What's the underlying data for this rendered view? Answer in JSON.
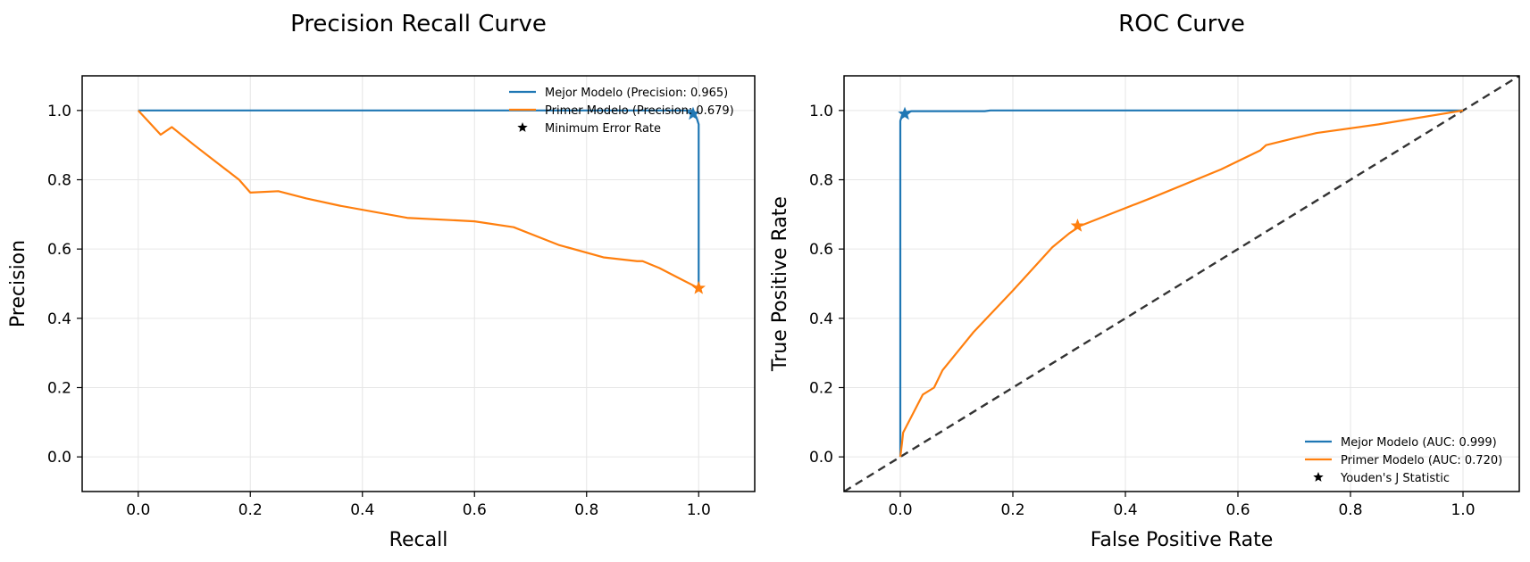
{
  "colors": {
    "mejor": "#1f77b4",
    "primer": "#ff7f0e",
    "diagonal": "#333333",
    "marker": "#000000"
  },
  "chart_data": [
    {
      "type": "line",
      "title": "Precision Recall Curve",
      "xlabel": "Recall",
      "ylabel": "Precision",
      "xlim": [
        -0.1,
        1.1
      ],
      "ylim": [
        -0.1,
        1.1
      ],
      "xticks": [
        0.0,
        0.2,
        0.4,
        0.6,
        0.8,
        1.0
      ],
      "yticks": [
        0.0,
        0.2,
        0.4,
        0.6,
        0.8,
        1.0
      ],
      "tick_labels": [
        "0.0",
        "0.2",
        "0.4",
        "0.6",
        "0.8",
        "1.0"
      ],
      "grid": true,
      "legend_position": "top-right",
      "legend": [
        {
          "label": "Mejor Modelo (Precision: 0.965)",
          "kind": "line",
          "color_key": "mejor"
        },
        {
          "label": "Primer Modelo (Precision: 0.679)",
          "kind": "line",
          "color_key": "primer"
        },
        {
          "label": "Minimum Error Rate",
          "kind": "star",
          "color_key": "marker"
        }
      ],
      "series": [
        {
          "name": "Mejor Modelo",
          "color_key": "mejor",
          "x": [
            0.0,
            0.5,
            0.985,
            0.99,
            0.993,
            0.996,
            0.998,
            1.0,
            1.0,
            1.0,
            1.0
          ],
          "y": [
            1.0,
            1.0,
            1.0,
            1.0,
            0.99,
            0.98,
            0.97,
            0.96,
            0.86,
            0.86,
            0.49
          ],
          "marker": {
            "x": 0.99,
            "y": 0.99
          }
        },
        {
          "name": "Primer Modelo",
          "color_key": "primer",
          "x": [
            0.0,
            0.02,
            0.04,
            0.06,
            0.1,
            0.14,
            0.18,
            0.2,
            0.25,
            0.3,
            0.36,
            0.48,
            0.6,
            0.67,
            0.75,
            0.83,
            0.89,
            0.9,
            0.93,
            0.96,
            1.0
          ],
          "y": [
            1.0,
            0.965,
            0.93,
            0.952,
            0.9,
            0.85,
            0.8,
            0.763,
            0.767,
            0.746,
            0.725,
            0.69,
            0.68,
            0.663,
            0.612,
            0.576,
            0.565,
            0.565,
            0.545,
            0.52,
            0.487
          ],
          "marker": {
            "x": 1.0,
            "y": 0.487
          }
        }
      ]
    },
    {
      "type": "line",
      "title": "ROC Curve",
      "xlabel": "False Positive Rate",
      "ylabel": "True Positive Rate",
      "xlim": [
        -0.1,
        1.1
      ],
      "ylim": [
        -0.1,
        1.1
      ],
      "xticks": [
        0.0,
        0.2,
        0.4,
        0.6,
        0.8,
        1.0
      ],
      "yticks": [
        0.0,
        0.2,
        0.4,
        0.6,
        0.8,
        1.0
      ],
      "tick_labels": [
        "0.0",
        "0.2",
        "0.4",
        "0.6",
        "0.8",
        "1.0"
      ],
      "grid": true,
      "legend_position": "bottom-right",
      "diagonal": {
        "x": [
          -0.1,
          1.1
        ],
        "y": [
          -0.1,
          1.1
        ]
      },
      "legend": [
        {
          "label": "Mejor Modelo (AUC: 0.999)",
          "kind": "line",
          "color_key": "mejor"
        },
        {
          "label": "Primer Modelo (AUC: 0.720)",
          "kind": "line",
          "color_key": "primer"
        },
        {
          "label": "Youden's J Statistic",
          "kind": "star",
          "color_key": "marker"
        }
      ],
      "series": [
        {
          "name": "Mejor Modelo",
          "color_key": "mejor",
          "x": [
            0.0,
            0.0,
            0.003,
            0.005,
            0.01,
            0.02,
            0.15,
            0.16,
            0.5,
            1.0
          ],
          "y": [
            0.0,
            0.97,
            0.985,
            0.99,
            0.995,
            0.998,
            0.998,
            1.0,
            1.0,
            1.0
          ],
          "marker": {
            "x": 0.008,
            "y": 0.99
          }
        },
        {
          "name": "Primer Modelo",
          "color_key": "primer",
          "x": [
            0.0,
            0.003,
            0.005,
            0.04,
            0.06,
            0.075,
            0.13,
            0.2,
            0.27,
            0.3,
            0.32,
            0.45,
            0.57,
            0.64,
            0.65,
            0.7,
            0.74,
            0.85,
            1.0
          ],
          "y": [
            0.0,
            0.04,
            0.07,
            0.18,
            0.2,
            0.25,
            0.36,
            0.48,
            0.605,
            0.645,
            0.667,
            0.75,
            0.83,
            0.885,
            0.9,
            0.92,
            0.935,
            0.96,
            1.0
          ],
          "marker": {
            "x": 0.315,
            "y": 0.667
          }
        }
      ]
    }
  ]
}
